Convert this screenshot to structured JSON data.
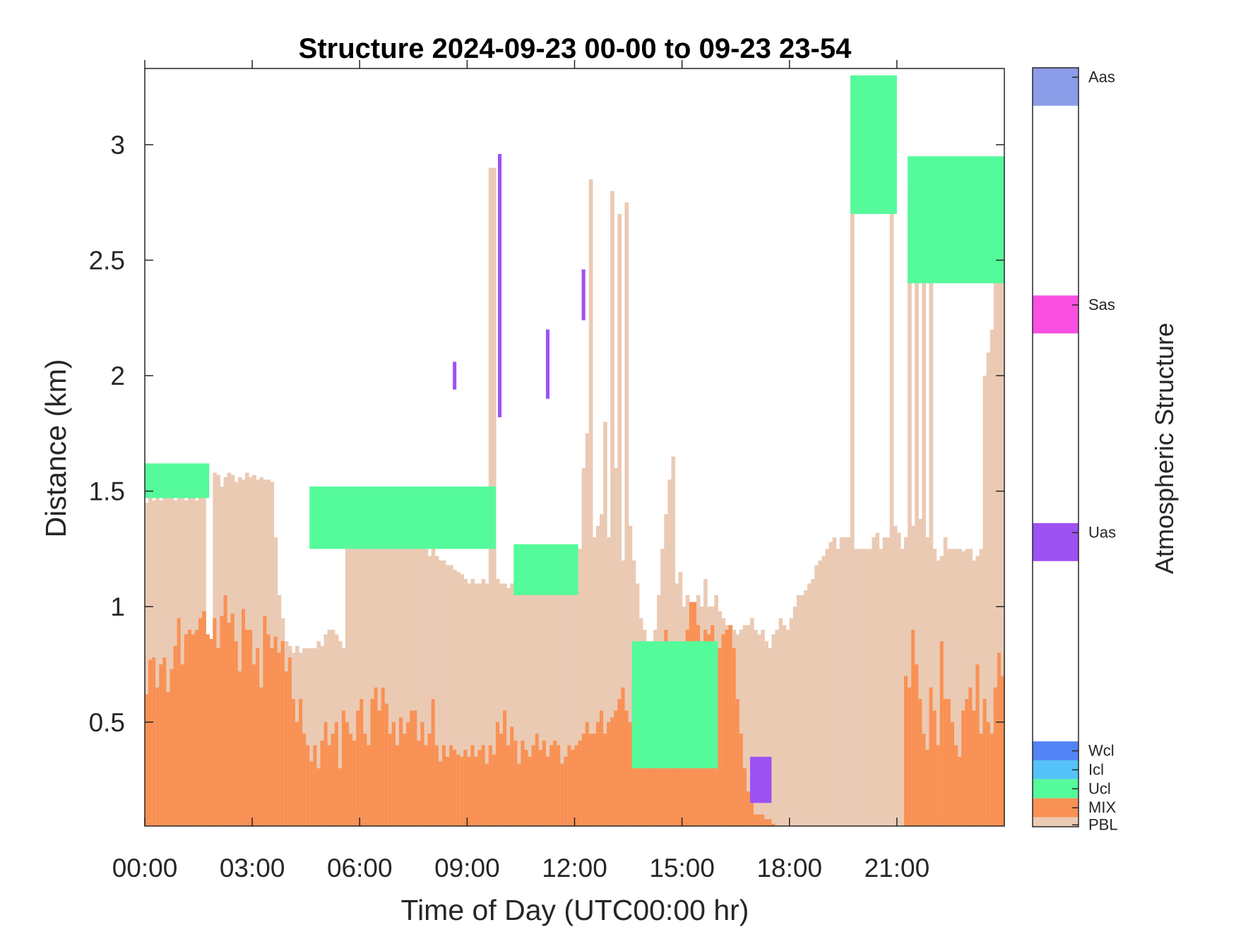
{
  "chart_data": {
    "type": "heatmap",
    "title": "Structure 2024-09-23 00-00 to 09-23 23-54",
    "xlabel": "Time of Day (UTC00:00 hr)",
    "ylabel": "Distance (km)",
    "colorbar_label": "Atmospheric Structure",
    "xlim": [
      0,
      24
    ],
    "ylim": [
      0.05,
      3.33
    ],
    "x_ticks": [
      0,
      3,
      6,
      9,
      12,
      15,
      18,
      21
    ],
    "x_tick_labels": [
      "00:00",
      "03:00",
      "06:00",
      "09:00",
      "12:00",
      "15:00",
      "18:00",
      "21:00"
    ],
    "y_ticks": [
      0.5,
      1,
      1.5,
      2,
      2.5,
      3
    ],
    "y_tick_labels": [
      "0.5",
      "1",
      "1.5",
      "2",
      "2.5",
      "3"
    ],
    "grid": false,
    "legend": "colorbar-right",
    "categories": [
      {
        "code": "PBL",
        "color": "#EBCAB4"
      },
      {
        "code": "MIX",
        "color": "#F99154"
      },
      {
        "code": "Ucl",
        "color": "#55FA9B"
      },
      {
        "code": "Icl",
        "color": "#55C3F8"
      },
      {
        "code": "Wcl",
        "color": "#5384F5"
      },
      {
        "code": "Uas",
        "color": "#9D52F2"
      },
      {
        "code": "Sas",
        "color": "#F950E2"
      },
      {
        "code": "Aas",
        "color": "#8B9CE8"
      }
    ],
    "profiles": {
      "start_hour": 0,
      "step_hours": 0.1,
      "mix_top_km": [
        0.62,
        0.77,
        0.78,
        0.65,
        0.75,
        0.78,
        0.63,
        0.73,
        0.83,
        0.95,
        0.75,
        0.88,
        0.9,
        0.88,
        0.9,
        0.95,
        0.98,
        0.88,
        0.86,
        0.95,
        0.82,
        0.96,
        1.05,
        0.93,
        0.97,
        0.85,
        0.72,
        0.99,
        0.9,
        0.9,
        0.75,
        0.82,
        0.65,
        0.96,
        0.88,
        0.82,
        0.87,
        0.8,
        0.85,
        0.72,
        0.78,
        0.6,
        0.5,
        0.6,
        0.45,
        0.4,
        0.33,
        0.4,
        0.3,
        0.42,
        0.5,
        0.4,
        0.45,
        0.5,
        0.3,
        0.55,
        0.5,
        0.45,
        0.42,
        0.55,
        0.6,
        0.45,
        0.4,
        0.6,
        0.65,
        0.55,
        0.65,
        0.58,
        0.45,
        0.5,
        0.4,
        0.52,
        0.45,
        0.5,
        0.55,
        0.55,
        0.42,
        0.5,
        0.4,
        0.45,
        0.6,
        0.4,
        0.33,
        0.4,
        0.35,
        0.4,
        0.38,
        0.36,
        0.35,
        0.38,
        0.35,
        0.4,
        0.35,
        0.38,
        0.4,
        0.32,
        0.4,
        0.36,
        0.5,
        0.45,
        0.55,
        0.4,
        0.48,
        0.42,
        0.32,
        0.42,
        0.38,
        0.35,
        0.4,
        0.45,
        0.38,
        0.42,
        0.35,
        0.4,
        0.42,
        0.4,
        0.32,
        0.35,
        0.4,
        0.38,
        0.4,
        0.42,
        0.45,
        0.5,
        0.45,
        0.45,
        0.5,
        0.55,
        0.45,
        0.5,
        0.52,
        0.55,
        0.6,
        0.65,
        0.55,
        0.5,
        0.68,
        0.6,
        0.55,
        0.6,
        0.65,
        0.62,
        0.55,
        0.6,
        0.85,
        0.9,
        0.82,
        0.8,
        0.75,
        0.72,
        0.7,
        0.9,
        1.02,
        1.02,
        0.92,
        0.85,
        0.9,
        0.88,
        0.92,
        0.85,
        0.82,
        0.88,
        0.9,
        0.92,
        0.82,
        0.6,
        0.45,
        0.3,
        0.2,
        0.18,
        0.1,
        0.1,
        0.1,
        0.08,
        0.08,
        0.06,
        0.05,
        0.05,
        0.05,
        0.05,
        0.05,
        0.05,
        0.05,
        0.05,
        0.05,
        0.05,
        0.05,
        0.05,
        0.05,
        0.05,
        0.05,
        0.05,
        0.05,
        0.05,
        0.05,
        0.05,
        0.05,
        0.05,
        0.05,
        0.05,
        0.05,
        0.05,
        0.05,
        0.05,
        0.05,
        0.05,
        0.05,
        0.05,
        0.05,
        0.05,
        0.05,
        0.05,
        0.7,
        0.65,
        0.9,
        0.75,
        0.6,
        0.45,
        0.38,
        0.65,
        0.55,
        0.4,
        0.85,
        0.6,
        0.6,
        0.5,
        0.4,
        0.35,
        0.55,
        0.6,
        0.65,
        0.55,
        0.75,
        0.45,
        0.6,
        0.5,
        0.45,
        0.65,
        0.8,
        0.7,
        0.5,
        0.55,
        0.6,
        0.8,
        0.7,
        0.55,
        0.85,
        0.75,
        0.75,
        0.92,
        0.8,
        0.7,
        0.88,
        0.8,
        0.78
      ],
      "pbl_top_km": [
        1.45,
        1.48,
        1.46,
        1.48,
        1.46,
        1.47,
        1.48,
        1.47,
        1.46,
        1.48,
        1.47,
        1.46,
        1.48,
        1.47,
        1.46,
        1.48,
        1.47,
        0.3,
        0.3,
        1.58,
        1.57,
        1.52,
        1.56,
        1.58,
        1.57,
        1.54,
        1.56,
        1.55,
        1.58,
        1.56,
        1.57,
        1.55,
        1.56,
        1.55,
        1.55,
        1.54,
        1.3,
        1.05,
        0.95,
        0.85,
        0.83,
        0.8,
        0.83,
        0.8,
        0.82,
        0.82,
        0.82,
        0.82,
        0.85,
        0.83,
        0.88,
        0.9,
        0.9,
        0.88,
        0.85,
        0.82,
        1.3,
        1.3,
        1.32,
        1.3,
        1.3,
        1.3,
        1.33,
        1.28,
        1.28,
        1.26,
        1.28,
        1.3,
        1.27,
        1.25,
        1.28,
        1.25,
        1.28,
        1.25,
        1.28,
        1.3,
        1.27,
        1.25,
        1.25,
        1.22,
        1.26,
        1.22,
        1.2,
        1.2,
        1.18,
        1.18,
        1.16,
        1.15,
        1.14,
        1.12,
        1.1,
        1.12,
        1.1,
        1.1,
        1.12,
        1.1,
        2.9,
        2.9,
        1.12,
        1.1,
        1.1,
        1.08,
        1.1,
        1.1,
        1.06,
        1.08,
        1.05,
        1.05,
        1.08,
        1.05,
        1.1,
        1.12,
        1.12,
        1.12,
        1.1,
        1.1,
        1.15,
        1.18,
        1.18,
        1.2,
        1.2,
        1.25,
        1.6,
        1.75,
        2.85,
        1.3,
        1.35,
        1.4,
        1.8,
        1.3,
        2.8,
        1.6,
        2.7,
        1.2,
        2.75,
        1.35,
        1.2,
        1.1,
        0.95,
        0.9,
        0.85,
        0.8,
        0.9,
        1.05,
        1.25,
        1.4,
        1.55,
        1.65,
        1.1,
        1.15,
        1.0,
        1.05,
        1.0,
        1.0,
        1.05,
        1.0,
        1.12,
        1.0,
        1.0,
        1.05,
        0.98,
        0.95,
        0.92,
        0.9,
        0.9,
        0.88,
        0.9,
        0.92,
        0.92,
        0.95,
        0.9,
        0.88,
        0.9,
        0.85,
        0.82,
        0.88,
        0.9,
        0.95,
        0.92,
        0.9,
        0.95,
        1.0,
        1.05,
        1.05,
        1.07,
        1.1,
        1.12,
        1.18,
        1.2,
        1.22,
        1.25,
        1.28,
        1.3,
        1.25,
        1.3,
        1.3,
        1.3,
        2.7,
        1.25,
        1.25,
        1.25,
        1.25,
        1.25,
        1.3,
        1.32,
        1.25,
        1.3,
        1.3,
        2.9,
        1.35,
        1.32,
        1.25,
        1.3,
        2.8,
        1.35,
        2.7,
        1.38,
        2.6,
        1.3,
        2.5,
        1.25,
        1.2,
        1.22,
        1.3,
        1.25,
        1.25,
        1.25,
        1.25,
        1.24,
        1.25,
        1.25,
        1.2,
        1.22,
        1.25,
        2.0,
        2.1,
        2.2,
        2.4,
        2.5,
        2.55,
        2.6,
        2.9,
        2.8,
        2.5
      ],
      "overlays": [
        {
          "class": "Ucl",
          "x": [
            0.0,
            1.8
          ],
          "y": [
            1.47,
            1.62
          ]
        },
        {
          "class": "Ucl",
          "x": [
            4.6,
            9.8
          ],
          "y": [
            1.25,
            1.52
          ]
        },
        {
          "class": "Ucl",
          "x": [
            10.3,
            12.1
          ],
          "y": [
            1.05,
            1.27
          ]
        },
        {
          "class": "Ucl",
          "x": [
            13.6,
            16.0
          ],
          "y": [
            0.3,
            0.85
          ]
        },
        {
          "class": "Ucl",
          "x": [
            19.7,
            21.0
          ],
          "y": [
            2.7,
            3.3
          ]
        },
        {
          "class": "Ucl",
          "x": [
            21.3,
            24.0
          ],
          "y": [
            2.4,
            2.95
          ]
        },
        {
          "class": "Uas",
          "x": [
            16.9,
            17.5
          ],
          "y": [
            0.15,
            0.35
          ]
        },
        {
          "class": "Uas",
          "x": [
            9.86,
            9.96
          ],
          "y": [
            1.82,
            2.96
          ]
        },
        {
          "class": "Uas",
          "x": [
            12.2,
            12.3
          ],
          "y": [
            2.24,
            2.46
          ]
        },
        {
          "class": "Uas",
          "x": [
            11.2,
            11.3
          ],
          "y": [
            1.9,
            2.2
          ]
        },
        {
          "class": "Uas",
          "x": [
            8.6,
            8.7
          ],
          "y": [
            1.94,
            2.06
          ]
        }
      ]
    }
  }
}
